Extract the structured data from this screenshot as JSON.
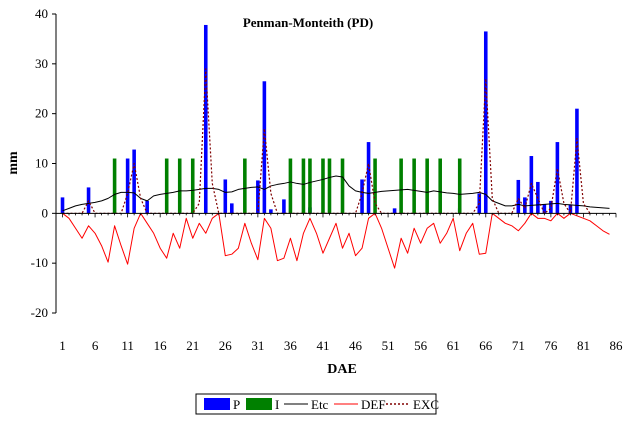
{
  "chart_data": {
    "type": "bar",
    "title": "Penman-Monteith (PD)",
    "xlabel": "DAE",
    "ylabel": "mm",
    "ylim": [
      -20,
      40
    ],
    "yticks": [
      -20,
      -10,
      0,
      10,
      20,
      30,
      40
    ],
    "xlim": [
      0,
      86
    ],
    "xticks": [
      1,
      6,
      11,
      16,
      21,
      26,
      31,
      36,
      41,
      46,
      51,
      56,
      61,
      66,
      71,
      76,
      81,
      86
    ],
    "grid": false,
    "legend_position": "bottom",
    "legend": [
      "P",
      "I",
      "Etc",
      "DEF",
      "EXC"
    ],
    "colors": {
      "P": "#0000ff",
      "I": "#008000",
      "Etc": "#000000",
      "DEF": "#ff0000",
      "EXC": "#800000"
    },
    "series": [
      {
        "name": "P",
        "type": "bar",
        "x": [
          1,
          5,
          11,
          12,
          14,
          23,
          26,
          27,
          31,
          32,
          33,
          35,
          39,
          47,
          48,
          52,
          62,
          65,
          66,
          71,
          72,
          73,
          74,
          75,
          76,
          77,
          79,
          80
        ],
        "values": [
          3.2,
          5.2,
          11,
          12.8,
          2.5,
          37.8,
          6.8,
          2,
          6.6,
          26.5,
          0.8,
          2.8,
          1.2,
          6.8,
          14.3,
          1,
          1,
          4,
          36.5,
          6.7,
          3.2,
          11.5,
          6.3,
          1.8,
          2.5,
          14.3,
          1.8,
          21
        ]
      },
      {
        "name": "I",
        "type": "bar",
        "x": [
          9,
          17,
          19,
          21,
          29,
          36,
          38,
          39,
          41,
          42,
          44,
          49,
          53,
          55,
          57,
          59,
          62
        ],
        "values": [
          11,
          11,
          11,
          11,
          11,
          11,
          11,
          11,
          11,
          11,
          11,
          11,
          11,
          11,
          11,
          11,
          11
        ]
      },
      {
        "name": "Etc",
        "type": "line",
        "x": [
          1,
          2,
          3,
          4,
          5,
          6,
          7,
          8,
          9,
          10,
          11,
          12,
          13,
          14,
          15,
          16,
          17,
          18,
          19,
          20,
          21,
          22,
          23,
          24,
          25,
          26,
          27,
          28,
          29,
          30,
          31,
          32,
          33,
          34,
          35,
          36,
          37,
          38,
          39,
          40,
          41,
          42,
          43,
          44,
          45,
          46,
          47,
          48,
          49,
          50,
          51,
          52,
          53,
          54,
          55,
          56,
          57,
          58,
          59,
          60,
          61,
          62,
          63,
          64,
          65,
          66,
          67,
          68,
          69,
          70,
          71,
          72,
          73,
          74,
          75,
          76,
          77,
          78,
          79,
          80,
          81,
          82,
          83,
          84,
          85
        ],
        "values": [
          0.5,
          1,
          1.5,
          1.8,
          2,
          2.2,
          2.5,
          3,
          3.8,
          4.2,
          4.2,
          4.1,
          3,
          2.5,
          3.5,
          3.8,
          4,
          4.2,
          4.5,
          4.5,
          4.6,
          4.8,
          5,
          5,
          4.8,
          4.2,
          4.3,
          4.8,
          5,
          5.2,
          5.3,
          4.8,
          5.5,
          5.8,
          6,
          6.3,
          6,
          5.8,
          6.2,
          6.5,
          6.8,
          7.2,
          7.5,
          7.3,
          5.5,
          4.5,
          4.2,
          4,
          4.2,
          4.4,
          4.5,
          4.6,
          4.7,
          4.8,
          4.6,
          4.4,
          4.2,
          4.5,
          4.3,
          4.1,
          4,
          3.8,
          3.9,
          4,
          4.2,
          3.8,
          2.5,
          2,
          1.5,
          1.5,
          1.8,
          1.5,
          1.6,
          1.7,
          1.8,
          1.9,
          2,
          1.8,
          1.7,
          1.6,
          1.5,
          1.3,
          1.2,
          1.1,
          1
        ]
      },
      {
        "name": "DEF",
        "type": "line",
        "x": [
          1,
          2,
          3,
          4,
          5,
          6,
          7,
          8,
          9,
          10,
          11,
          12,
          13,
          14,
          15,
          16,
          17,
          18,
          19,
          20,
          21,
          22,
          23,
          24,
          25,
          26,
          27,
          28,
          29,
          30,
          31,
          32,
          33,
          34,
          35,
          36,
          37,
          38,
          39,
          40,
          41,
          42,
          43,
          44,
          45,
          46,
          47,
          48,
          49,
          50,
          51,
          52,
          53,
          54,
          55,
          56,
          57,
          58,
          59,
          60,
          61,
          62,
          63,
          64,
          65,
          66,
          67,
          68,
          69,
          70,
          71,
          72,
          73,
          74,
          75,
          76,
          77,
          78,
          79,
          80,
          81,
          82,
          83,
          84,
          85
        ],
        "values": [
          0,
          -1,
          -3,
          -5,
          -2.5,
          -4,
          -6.5,
          -9.8,
          -2.5,
          -6.5,
          -10.2,
          -3,
          0,
          -2,
          -4,
          -7,
          -9,
          -4,
          -7,
          -1,
          -5,
          -2,
          -4,
          -1,
          0,
          -8.5,
          -8.2,
          -7,
          -2,
          -6,
          -9.3,
          -1,
          -3,
          -9.5,
          -9,
          -5,
          -9.5,
          -4,
          -1,
          -4,
          -8,
          -5,
          -2,
          -7,
          -4,
          -8.5,
          -7,
          -1,
          0,
          -3,
          -7,
          -11,
          -5,
          -8,
          -3,
          -6,
          -3,
          -2,
          -6,
          -4,
          -1,
          -7.5,
          -4,
          -2,
          -8.2,
          -8,
          0,
          -1,
          -2,
          -2.5,
          -3.5,
          -2,
          0,
          -1,
          -1,
          -1.5,
          0,
          -1,
          0,
          -0.5,
          -1,
          -1.5,
          -2.5,
          -3.5,
          -4.2
        ]
      },
      {
        "name": "EXC",
        "type": "line",
        "x": [
          1,
          4,
          5,
          6,
          10,
          11,
          12,
          13,
          14,
          21,
          22,
          23,
          24,
          25,
          31,
          32,
          33,
          34,
          46,
          47,
          48,
          49,
          50,
          64,
          65,
          66,
          67,
          68,
          70,
          71,
          72,
          73,
          74,
          75,
          76,
          77,
          78,
          79,
          80,
          81,
          82
        ],
        "values": [
          0,
          0,
          2.5,
          0,
          0,
          4,
          10,
          3,
          0,
          0,
          2,
          29,
          6,
          0,
          0,
          17,
          4,
          0,
          0,
          4,
          10,
          2,
          0,
          0,
          2,
          27,
          3,
          0,
          0,
          3,
          1,
          6,
          3,
          0,
          1,
          9,
          2,
          0,
          15,
          2,
          0
        ]
      }
    ]
  }
}
